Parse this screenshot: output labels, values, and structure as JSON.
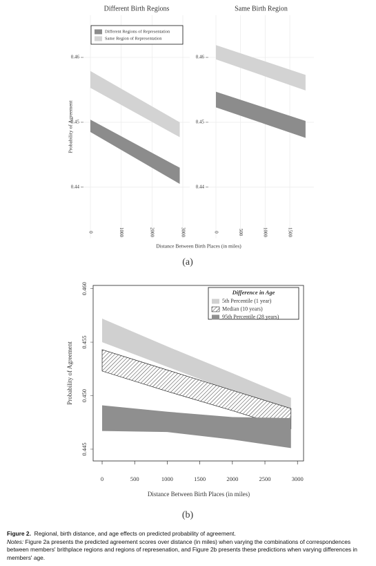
{
  "chart_data": [
    {
      "type": "band",
      "title": "Different Birth Regions",
      "ylabel": "Probability of Agreement",
      "xlabel": "Distance Between Birth Places (in miles)",
      "x": [
        0,
        2900
      ],
      "xlim": [
        -224,
        3224
      ],
      "xticks": [
        0,
        1000,
        2000,
        3000
      ],
      "ylim": [
        0.4321,
        0.4665
      ],
      "yticks": [
        0.44,
        0.45,
        0.46
      ],
      "grid": true,
      "legend": "upper left",
      "series": [
        {
          "name": "Different Regions of Representation",
          "color": "#8c8c8c",
          "upper": [
            0.4504,
            0.443
          ],
          "lower": [
            0.4485,
            0.4405
          ]
        },
        {
          "name": "Same Region of Representation",
          "color": "#d3d3d3",
          "upper": [
            0.4579,
            0.45
          ],
          "lower": [
            0.4553,
            0.4477
          ]
        }
      ]
    },
    {
      "type": "band",
      "title": "Same Birth Region",
      "x": [
        0,
        1820
      ],
      "xlim": [
        -154,
        1990
      ],
      "xticks": [
        0,
        500,
        1000,
        1500
      ],
      "ylim": [
        0.4321,
        0.4665
      ],
      "yticks": [
        0.44,
        0.45,
        0.46
      ],
      "grid": true,
      "series": [
        {
          "color": "#8c8c8c",
          "upper": [
            0.4547,
            0.4502
          ],
          "lower": [
            0.4523,
            0.4476
          ]
        },
        {
          "color": "#d3d3d3",
          "upper": [
            0.4619,
            0.4573
          ],
          "lower": [
            0.4597,
            0.4549
          ]
        }
      ]
    },
    {
      "type": "band",
      "ylabel": "Probability of Agreement",
      "xlabel": "Distance Between Birth Places (in miles)",
      "x": [
        0,
        1000,
        2000,
        2900
      ],
      "xlim": [
        -138,
        3093
      ],
      "xticks": [
        0,
        500,
        1000,
        1500,
        2000,
        2500,
        3000
      ],
      "ylim": [
        0.4439,
        0.4603
      ],
      "yticks": [
        {
          "value": 0.445,
          "label": "0.445"
        },
        {
          "value": 0.45,
          "label": "0.450"
        },
        {
          "value": 0.455,
          "label": "0.455"
        },
        {
          "value": 0.46,
          "label": "0.460"
        }
      ],
      "grid": false,
      "frame": true,
      "legend": "upper right",
      "legend_title": "Difference in Age",
      "series": [
        {
          "name": "5th Percentile (1 year)",
          "color": "#d0d0d0",
          "upper": [
            0.4572,
            0.4546,
            0.4521,
            0.4498
          ],
          "lower": [
            0.455,
            0.4527,
            0.4504,
            0.4484
          ]
        },
        {
          "name": "Median (10 years)",
          "color": "#ffffff",
          "hatch": true,
          "upper": [
            0.4543,
            0.4524,
            0.4505,
            0.4488
          ],
          "lower": [
            0.4523,
            0.4504,
            0.4486,
            0.4469
          ]
        },
        {
          "name": "95th Percentile (28 years)",
          "color": "#8f8f8f",
          "upper": [
            0.4491,
            0.4485,
            0.448,
            0.4479
          ],
          "lower": [
            0.4467,
            0.4466,
            0.4459,
            0.4451
          ]
        }
      ]
    }
  ],
  "panel_labels": {
    "a": "(a)",
    "b": "(b)"
  },
  "caption": {
    "label": "Figure 2.",
    "title": "Regional, birth distance, and age effects on predicted probability of agreement.",
    "notes_label": "Notes:",
    "notes": "Figure 2a presents the predicted agreement scores over distance (in miles) when varying the combinations of correspondences between members' brithplace regions and regions of represenation, and Figure 2b presents these predictions when varying differences in members' age."
  }
}
